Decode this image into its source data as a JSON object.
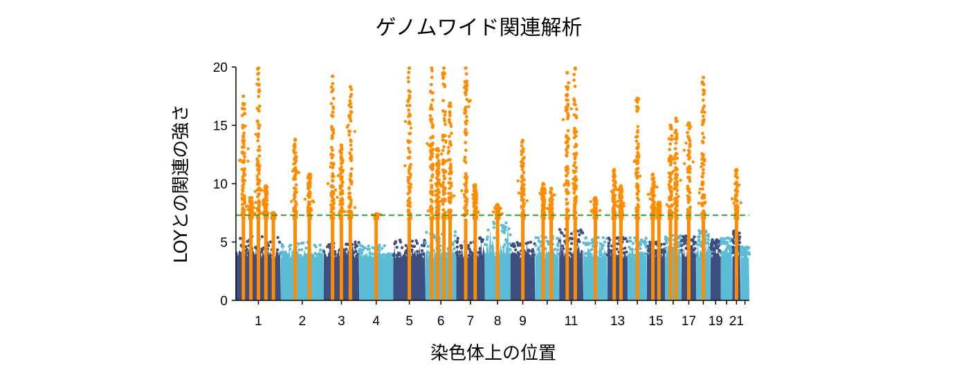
{
  "chart_data": {
    "type": "scatter",
    "subtype": "manhattan",
    "title": "ゲノムワイド関連解析",
    "xlabel": "染色体上の位置",
    "ylabel": "LOYとの関連の強さ",
    "ylim": [
      0,
      20
    ],
    "yticks": [
      0,
      5,
      10,
      15,
      20
    ],
    "grid": false,
    "legend": "none",
    "significance_threshold": 7.3,
    "colors": {
      "odd_chromosome": "#3c4f80",
      "even_chromosome": "#5bbcd6",
      "significant": "#ff8c00",
      "threshold_line": "#2ca02c"
    },
    "chromosomes": [
      {
        "name": "1",
        "bg_peak": 5.5,
        "label": "1"
      },
      {
        "name": "2",
        "bg_peak": 5.0,
        "label": "2"
      },
      {
        "name": "3",
        "bg_peak": 5.0,
        "label": "3"
      },
      {
        "name": "4",
        "bg_peak": 4.8,
        "label": "4"
      },
      {
        "name": "5",
        "bg_peak": 5.2,
        "label": "5"
      },
      {
        "name": "6",
        "bg_peak": 6.0,
        "label": "6"
      },
      {
        "name": "7",
        "bg_peak": 5.4,
        "label": "7"
      },
      {
        "name": "8",
        "bg_peak": 7.0,
        "label": "8"
      },
      {
        "name": "9",
        "bg_peak": 5.0,
        "label": "9"
      },
      {
        "name": "10",
        "bg_peak": 5.6,
        "label": ""
      },
      {
        "name": "11",
        "bg_peak": 6.4,
        "label": "11"
      },
      {
        "name": "12",
        "bg_peak": 5.6,
        "label": ""
      },
      {
        "name": "13",
        "bg_peak": 5.4,
        "label": "13"
      },
      {
        "name": "14",
        "bg_peak": 5.4,
        "label": ""
      },
      {
        "name": "15",
        "bg_peak": 5.0,
        "label": "15"
      },
      {
        "name": "16",
        "bg_peak": 5.6,
        "label": ""
      },
      {
        "name": "17",
        "bg_peak": 5.6,
        "label": "17"
      },
      {
        "name": "18",
        "bg_peak": 6.0,
        "label": ""
      },
      {
        "name": "19",
        "bg_peak": 5.2,
        "label": "19"
      },
      {
        "name": "20",
        "bg_peak": 5.4,
        "label": ""
      },
      {
        "name": "21",
        "bg_peak": 6.0,
        "label": "21"
      },
      {
        "name": "22",
        "bg_peak": 4.6,
        "label": ""
      }
    ],
    "significant_loci": [
      {
        "chrom": "1",
        "peak": 17.5
      },
      {
        "chrom": "1",
        "peak": 8.8
      },
      {
        "chrom": "1",
        "peak": 19.9
      },
      {
        "chrom": "1",
        "peak": 9.8
      },
      {
        "chrom": "1",
        "peak": 7.5
      },
      {
        "chrom": "2",
        "peak": 13.8
      },
      {
        "chrom": "2",
        "peak": 10.8
      },
      {
        "chrom": "3",
        "peak": 19.2
      },
      {
        "chrom": "3",
        "peak": 13.3
      },
      {
        "chrom": "3",
        "peak": 18.3
      },
      {
        "chrom": "4",
        "peak": 7.4
      },
      {
        "chrom": "5",
        "peak": 19.9
      },
      {
        "chrom": "6",
        "peak": 19.9
      },
      {
        "chrom": "6",
        "peak": 13.0
      },
      {
        "chrom": "6",
        "peak": 19.9
      },
      {
        "chrom": "6",
        "peak": 16.9
      },
      {
        "chrom": "7",
        "peak": 19.9
      },
      {
        "chrom": "7",
        "peak": 9.9
      },
      {
        "chrom": "8",
        "peak": 8.2
      },
      {
        "chrom": "9",
        "peak": 13.7
      },
      {
        "chrom": "10",
        "peak": 10.0
      },
      {
        "chrom": "10",
        "peak": 9.6
      },
      {
        "chrom": "11",
        "peak": 19.5
      },
      {
        "chrom": "11",
        "peak": 19.9
      },
      {
        "chrom": "12",
        "peak": 8.8
      },
      {
        "chrom": "13",
        "peak": 11.2
      },
      {
        "chrom": "13",
        "peak": 9.8
      },
      {
        "chrom": "14",
        "peak": 17.3
      },
      {
        "chrom": "15",
        "peak": 10.8
      },
      {
        "chrom": "15",
        "peak": 8.4
      },
      {
        "chrom": "16",
        "peak": 15.0
      },
      {
        "chrom": "16",
        "peak": 15.6
      },
      {
        "chrom": "17",
        "peak": 15.2
      },
      {
        "chrom": "18",
        "peak": 19.1
      },
      {
        "chrom": "21",
        "peak": 11.2
      }
    ]
  }
}
